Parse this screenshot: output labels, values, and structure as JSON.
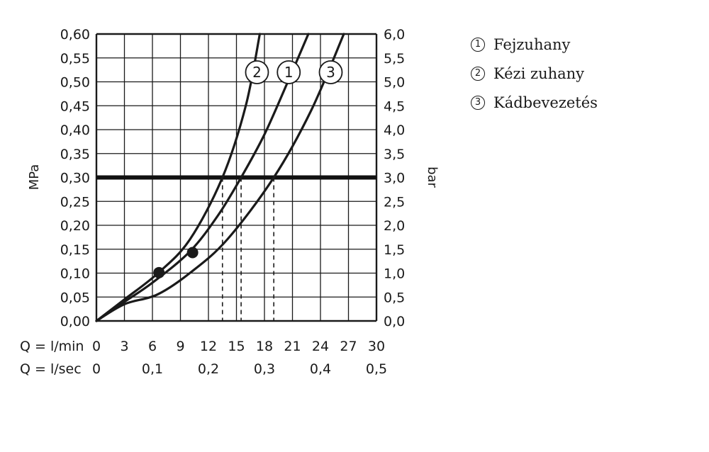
{
  "chart_data": {
    "type": "line",
    "y_left_label": "MPa",
    "y_right_label": "bar",
    "x_label_primary": "Q = l/min",
    "x_label_secondary": "Q = l/sec",
    "x_ticks_primary": [
      "0",
      "3",
      "6",
      "9",
      "12",
      "15",
      "18",
      "21",
      "24",
      "27",
      "30"
    ],
    "x_ticks_secondary": [
      "0",
      "0,1",
      "0,2",
      "0,3",
      "0,4",
      "0,5"
    ],
    "y_ticks_left": [
      "0,00",
      "0,05",
      "0,10",
      "0,15",
      "0,20",
      "0,25",
      "0,30",
      "0,35",
      "0,40",
      "0,45",
      "0,50",
      "0,55",
      "0,60"
    ],
    "y_ticks_right": [
      "0,0",
      "0,5",
      "1,0",
      "1,5",
      "2,0",
      "2,5",
      "3,0",
      "3,5",
      "4,0",
      "4,5",
      "5,0",
      "5,5",
      "6,0"
    ],
    "xlim": [
      0,
      30
    ],
    "ylim": [
      0,
      0.6
    ],
    "grid": true,
    "reference_pressure": 0.3,
    "series": [
      {
        "name": "1",
        "x": [
          0,
          3,
          6,
          10,
          13,
          15.5,
          18,
          20.5,
          22.7
        ],
        "y": [
          0,
          0.04,
          0.08,
          0.145,
          0.22,
          0.3,
          0.39,
          0.5,
          0.6
        ],
        "marker": {
          "x": 10.3,
          "y": 0.143
        },
        "drop_line_x": 15.5,
        "label_position": [
          20.6,
          0.52
        ]
      },
      {
        "name": "2",
        "x": [
          0,
          3,
          6.6,
          10,
          13.5,
          16,
          17.5
        ],
        "y": [
          0,
          0.045,
          0.1,
          0.17,
          0.3,
          0.45,
          0.6
        ],
        "marker": {
          "x": 6.7,
          "y": 0.101
        },
        "drop_line_x": 13.5,
        "label_position": [
          17.2,
          0.52
        ]
      },
      {
        "name": "3",
        "x": [
          0,
          3,
          6.5,
          10,
          14,
          19,
          23,
          26.5
        ],
        "y": [
          0,
          0.035,
          0.055,
          0.1,
          0.17,
          0.3,
          0.44,
          0.6
        ],
        "drop_line_x": 19,
        "label_position": [
          25.1,
          0.52
        ]
      }
    ]
  },
  "legend": [
    {
      "num": "1",
      "label": "Fejzuhany"
    },
    {
      "num": "2",
      "label": "Kézi zuhany"
    },
    {
      "num": "3",
      "label": "Kádbevezetés"
    }
  ]
}
